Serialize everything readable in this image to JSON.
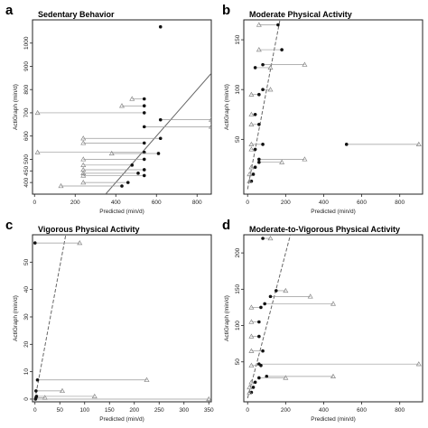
{
  "chart_data": [
    {
      "panel_letter": "a",
      "title": "Sedentary Behavior",
      "type": "scatter",
      "xlabel": "Predicted (min/d)",
      "ylabel": "ActiGraph (min/d)",
      "xlim": [
        -10,
        870
      ],
      "ylim": [
        350,
        1100
      ],
      "xticks": [
        0,
        200,
        400,
        600,
        800
      ],
      "yticks": [
        400,
        450,
        500,
        600,
        700,
        800,
        900,
        1000
      ],
      "ytick_labels": [
        "400",
        "450",
        "500",
        "600",
        "700",
        "800",
        "900",
        "1000"
      ],
      "line_color": "#555555",
      "point_color": "#111111",
      "triangle_color": "#999999",
      "identity_line": {
        "x": [
          350,
          870
        ],
        "y": [
          350,
          870
        ]
      },
      "series": [
        {
          "x_predicted": 540,
          "x_alt": 480,
          "y": 760
        },
        {
          "x_predicted": 540,
          "x_alt": 430,
          "y": 730
        },
        {
          "x_predicted": 540,
          "x_alt": 15,
          "y": 700
        },
        {
          "x_predicted": 620,
          "x_alt": 870,
          "y": 670
        },
        {
          "x_predicted": 540,
          "x_alt": 870,
          "y": 640
        },
        {
          "x_predicted": 620,
          "x_alt": 240,
          "y": 590
        },
        {
          "x_predicted": 540,
          "x_alt": 240,
          "y": 570
        },
        {
          "x_predicted": 540,
          "x_alt": 15,
          "y": 530
        },
        {
          "x_predicted": 610,
          "x_alt": 380,
          "y": 525
        },
        {
          "x_predicted": 540,
          "x_alt": 240,
          "y": 500
        },
        {
          "x_predicted": 480,
          "x_alt": 240,
          "y": 475
        },
        {
          "x_predicted": 540,
          "x_alt": 240,
          "y": 455
        },
        {
          "x_predicted": 510,
          "x_alt": 240,
          "y": 440
        },
        {
          "x_predicted": 540,
          "x_alt": 240,
          "y": 430
        },
        {
          "x_predicted": 460,
          "x_alt": 240,
          "y": 400
        },
        {
          "x_predicted": 430,
          "x_alt": 130,
          "y": 385
        }
      ],
      "extra_points": [
        {
          "x": 620,
          "y": 1070
        }
      ]
    },
    {
      "panel_letter": "b",
      "title": "Moderate Physical Activity",
      "type": "scatter",
      "xlabel": "Predicted (min/d)",
      "ylabel": "ActiGraph (min/d)",
      "xlim": [
        -20,
        920
      ],
      "ylim": [
        -5,
        170
      ],
      "xticks": [
        0,
        200,
        400,
        600,
        800
      ],
      "yticks": [
        50,
        100,
        150
      ],
      "ytick_labels": [
        "50",
        "100",
        "150"
      ],
      "identity_line": {
        "x": [
          0,
          170
        ],
        "y": [
          0,
          170
        ]
      },
      "series": [
        {
          "x_predicted": 160,
          "x_alt": 60,
          "y": 165
        },
        {
          "x_predicted": 180,
          "x_alt": 60,
          "y": 140
        },
        {
          "x_predicted": 80,
          "x_alt": 300,
          "y": 125
        },
        {
          "x_predicted": 40,
          "x_alt": 120,
          "y": 122
        },
        {
          "x_predicted": 80,
          "x_alt": 120,
          "y": 100
        },
        {
          "x_predicted": 60,
          "x_alt": 20,
          "y": 95
        },
        {
          "x_predicted": 40,
          "x_alt": 20,
          "y": 75
        },
        {
          "x_predicted": 60,
          "x_alt": 20,
          "y": 65
        },
        {
          "x_predicted": 80,
          "x_alt": 20,
          "y": 45
        },
        {
          "x_predicted": 520,
          "x_alt": 900,
          "y": 45
        },
        {
          "x_predicted": 40,
          "x_alt": 20,
          "y": 40
        },
        {
          "x_predicted": 60,
          "x_alt": 300,
          "y": 30
        },
        {
          "x_predicted": 60,
          "x_alt": 180,
          "y": 27
        },
        {
          "x_predicted": 40,
          "x_alt": 20,
          "y": 22
        },
        {
          "x_predicted": 30,
          "x_alt": 10,
          "y": 15
        },
        {
          "x_predicted": 20,
          "x_alt": 10,
          "y": 8
        }
      ],
      "extra_points": []
    },
    {
      "panel_letter": "c",
      "title": "Vigorous Physical Activity",
      "type": "scatter",
      "xlabel": "Predicted (min/d)",
      "ylabel": "ActiGraph (min/d)",
      "xlim": [
        -5,
        355
      ],
      "ylim": [
        -1,
        60
      ],
      "xticks": [
        0,
        50,
        100,
        150,
        200,
        250,
        300,
        350
      ],
      "yticks": [
        0,
        10,
        20,
        30,
        40,
        50
      ],
      "ytick_labels": [
        "0",
        "10",
        "20",
        "30",
        "40",
        "50"
      ],
      "identity_line": {
        "x": [
          0,
          62
        ],
        "y": [
          0,
          60
        ]
      },
      "series": [
        {
          "x_predicted": 0,
          "x_alt": 90,
          "y": 57
        },
        {
          "x_predicted": 5,
          "x_alt": 225,
          "y": 7
        },
        {
          "x_predicted": 2,
          "x_alt": 55,
          "y": 3
        },
        {
          "x_predicted": 3,
          "x_alt": 120,
          "y": 1
        },
        {
          "x_predicted": 2,
          "x_alt": 20,
          "y": 0.5
        },
        {
          "x_predicted": 1,
          "x_alt": 350,
          "y": 0
        }
      ],
      "extra_points": []
    },
    {
      "panel_letter": "d",
      "title": "Moderate-to-Vigorous Physical Activity",
      "type": "scatter",
      "xlabel": "Predicted (min/d)",
      "ylabel": "ActiGraph (min/d)",
      "xlim": [
        -20,
        920
      ],
      "ylim": [
        -5,
        225
      ],
      "xticks": [
        0,
        200,
        400,
        600,
        800
      ],
      "yticks": [
        50,
        100,
        150,
        200
      ],
      "ytick_labels": [
        "50",
        "100",
        "150",
        "200"
      ],
      "identity_line": {
        "x": [
          0,
          230
        ],
        "y": [
          0,
          230
        ]
      },
      "series": [
        {
          "x_predicted": 80,
          "x_alt": 120,
          "y": 220
        },
        {
          "x_predicted": 150,
          "x_alt": 200,
          "y": 148
        },
        {
          "x_predicted": 120,
          "x_alt": 330,
          "y": 140
        },
        {
          "x_predicted": 90,
          "x_alt": 450,
          "y": 130
        },
        {
          "x_predicted": 70,
          "x_alt": 20,
          "y": 125
        },
        {
          "x_predicted": 60,
          "x_alt": 20,
          "y": 105
        },
        {
          "x_predicted": 60,
          "x_alt": 20,
          "y": 85
        },
        {
          "x_predicted": 80,
          "x_alt": 20,
          "y": 65
        },
        {
          "x_predicted": 60,
          "x_alt": 900,
          "y": 47
        },
        {
          "x_predicted": 70,
          "x_alt": 20,
          "y": 45
        },
        {
          "x_predicted": 100,
          "x_alt": 450,
          "y": 30
        },
        {
          "x_predicted": 60,
          "x_alt": 200,
          "y": 28
        },
        {
          "x_predicted": 40,
          "x_alt": 20,
          "y": 22
        },
        {
          "x_predicted": 30,
          "x_alt": 10,
          "y": 15
        },
        {
          "x_predicted": 20,
          "x_alt": 10,
          "y": 8
        }
      ],
      "extra_points": []
    }
  ]
}
